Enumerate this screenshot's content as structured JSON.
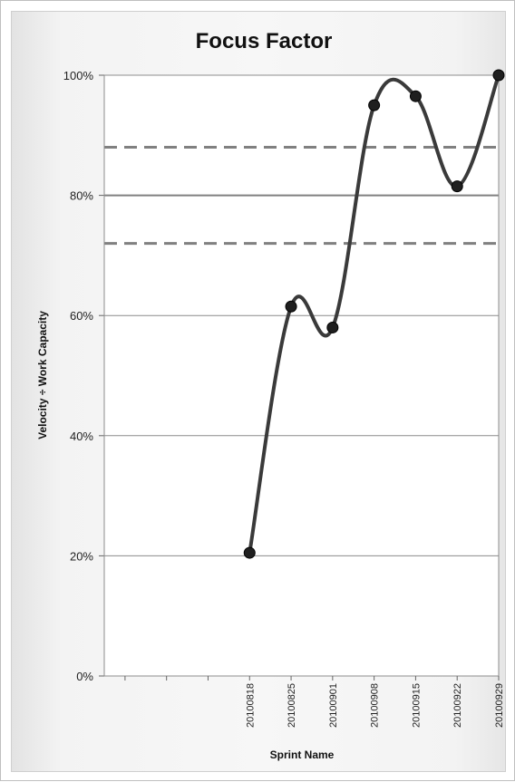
{
  "chart_data": {
    "type": "line",
    "title": "Focus Factor",
    "xlabel": "Sprint Name",
    "ylabel": "Velocity ÷ Work Capacity",
    "categories": [
      "",
      "",
      "",
      "20100818",
      "20100825",
      "20100901",
      "20100908",
      "20100915",
      "20100922",
      "20100929"
    ],
    "series": [
      {
        "values": [
          null,
          null,
          null,
          20.5,
          61.5,
          58,
          95,
          96.5,
          81.5,
          100
        ]
      }
    ],
    "reference_lines": [
      {
        "value": 88,
        "style": "dashed"
      },
      {
        "value": 80,
        "style": "solid"
      },
      {
        "value": 72,
        "style": "dashed"
      }
    ],
    "ylim": [
      0,
      100
    ],
    "yticks": [
      0,
      20,
      40,
      60,
      80,
      100
    ],
    "ytick_labels": [
      "0%",
      "20%",
      "40%",
      "60%",
      "80%",
      "100%"
    ],
    "grid": true,
    "legend": "none",
    "colors": {
      "line": "#3a3a3a",
      "marker": "#1f1f1f",
      "reference": "#808080",
      "grid": "#8c8c8c",
      "plot_background": "#ffffff"
    }
  }
}
